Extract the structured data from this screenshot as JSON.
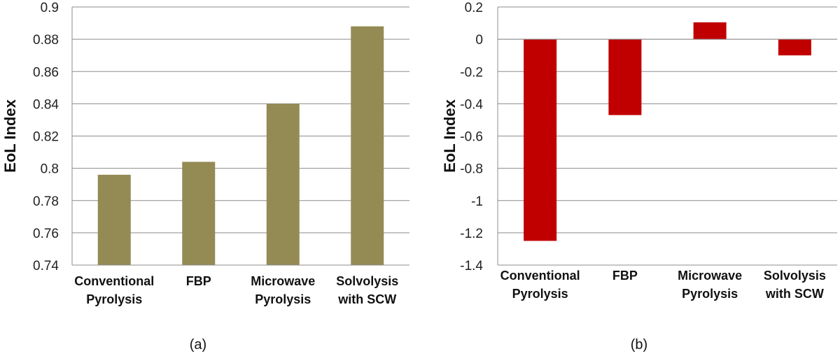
{
  "chart_data": [
    {
      "type": "bar",
      "categories": [
        [
          "Conventional",
          "Pyrolysis"
        ],
        [
          "FBP"
        ],
        [
          "Microwave",
          "Pyrolysis"
        ],
        [
          "Solvolysis",
          "with SCW"
        ]
      ],
      "values": [
        0.796,
        0.804,
        0.84,
        0.888
      ],
      "ylabel": "EoL Index",
      "ylim": [
        0.74,
        0.9
      ],
      "yticks": [
        0.74,
        0.76,
        0.78,
        0.8,
        0.82,
        0.84,
        0.86,
        0.88,
        0.9
      ],
      "ytick_labels": [
        "0.74",
        "0.76",
        "0.78",
        "0.8",
        "0.82",
        "0.84",
        "0.86",
        "0.88",
        "0.9"
      ],
      "bar_color": "#948a54",
      "grid": true,
      "caption": "(a)"
    },
    {
      "type": "bar",
      "categories": [
        [
          "Conventional",
          "Pyrolysis"
        ],
        [
          "FBP"
        ],
        [
          "Microwave",
          "Pyrolysis"
        ],
        [
          "Solvolysis",
          "with SCW"
        ]
      ],
      "values": [
        -1.25,
        -0.47,
        0.105,
        -0.1
      ],
      "ylabel": "EoL Index",
      "ylim": [
        -1.4,
        0.2
      ],
      "yticks": [
        -1.4,
        -1.2,
        -1,
        -0.8,
        -0.6,
        -0.4,
        -0.2,
        0,
        0.2
      ],
      "ytick_labels": [
        "-1.4",
        "-1.2",
        "-1",
        "-0.8",
        "-0.6",
        "-0.4",
        "-0.2",
        "0",
        "0.2"
      ],
      "bar_color": "#c00000",
      "grid": true,
      "caption": "(b)"
    }
  ]
}
